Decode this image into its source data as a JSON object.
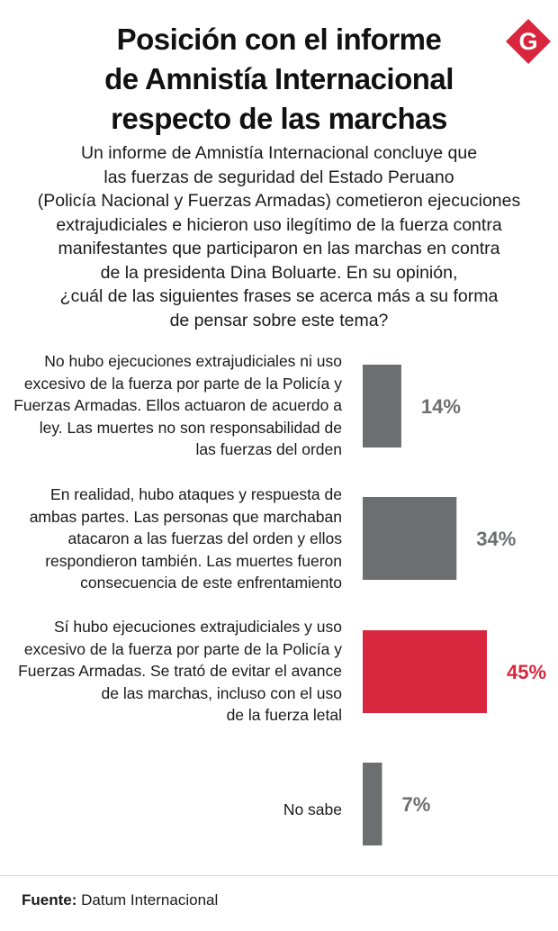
{
  "title_lines": [
    "Posición con el informe",
    "de Amnistía Internacional",
    "respecto de las marchas"
  ],
  "logo_letter": "G",
  "intro_lines": [
    "Un informe de Amnistía Internacional concluye que",
    "las fuerzas de seguridad del Estado Peruano",
    "(Policía Nacional y Fuerzas Armadas) cometieron ejecuciones",
    "extrajudiciales e hicieron uso ilegítimo de la fuerza contra",
    "manifestantes que participaron en las marchas en contra",
    "de la presidenta Dina Boluarte. En su opinión,",
    "¿cuál de las siguientes frases se acerca más a su forma",
    "de pensar sobre este tema?"
  ],
  "rows": [
    {
      "label_lines": [
        "No hubo ejecuciones extrajudiciales ni uso",
        "excesivo de la fuerza por parte de la Policía y",
        "Fuerzas Armadas. Ellos actuaron de acuerdo a",
        "ley. Las muertes no son responsabilidad de",
        "las fuerzas del orden"
      ]
    },
    {
      "label_lines": [
        "En realidad, hubo ataques y respuesta de",
        "ambas partes.  Las personas que marchaban",
        "atacaron a las fuerzas del orden y ellos",
        "respondieron también. Las muertes fueron",
        "consecuencia de este enfrentamiento"
      ]
    },
    {
      "label_lines": [
        "Sí hubo ejecuciones extrajudiciales y uso",
        "excesivo de la fuerza por parte de la Policía y",
        "Fuerzas Armadas. Se trató de evitar el avance",
        "de las marchas, incluso con el uso",
        "de la fuerza letal"
      ]
    },
    {
      "label_lines": [
        "No sabe"
      ]
    }
  ],
  "chart_data": {
    "type": "bar",
    "orientation": "horizontal",
    "categories": [
      "No hubo ejecuciones extrajudiciales ni uso excesivo de la fuerza por parte de la Policía y Fuerzas Armadas. Ellos actuaron de acuerdo a ley. Las muertes no son responsabilidad de las fuerzas del orden",
      "En realidad, hubo ataques y respuesta de ambas partes.  Las personas que marchaban atacaron a las fuerzas del orden y ellos respondieron también. Las muertes fueron consecuencia de este enfrentamiento",
      "Sí hubo ejecuciones extrajudiciales y uso excesivo de la fuerza por parte de la Policía y Fuerzas Armadas. Se trató de evitar el avance de las marchas, incluso con el uso de la fuerza letal",
      "No sabe"
    ],
    "values": [
      14,
      34,
      45,
      7
    ],
    "value_labels": [
      "14%",
      "34%",
      "45%",
      "7%"
    ],
    "colors": [
      "#6d6e70",
      "#6d6e70",
      "#d7263d",
      "#6d6e70"
    ],
    "xlim": [
      0,
      45
    ],
    "grid": false,
    "legend": "none"
  },
  "colors": {
    "gray": "#6d6e70",
    "accent": "#d7263d",
    "text": "#1a1a1a"
  },
  "source": {
    "label": "Fuente:",
    "text": " Datum Internacional"
  }
}
